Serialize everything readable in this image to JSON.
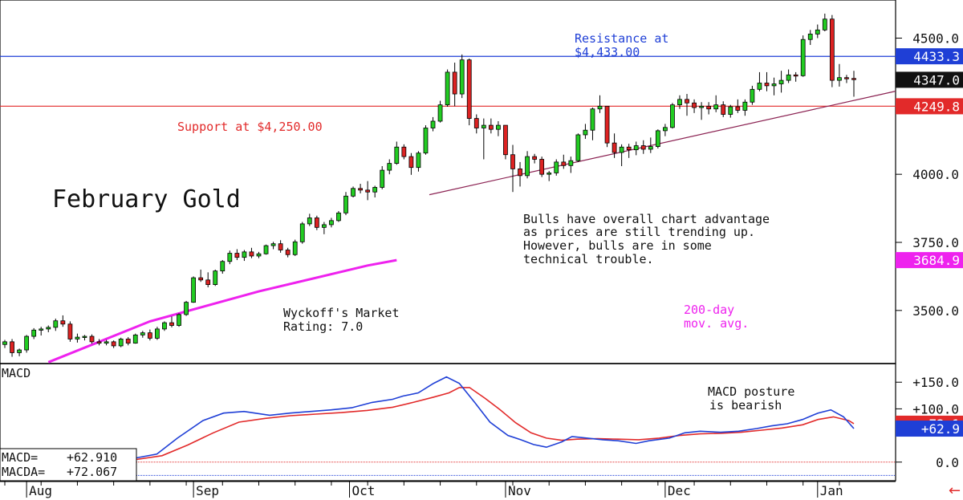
{
  "chart_data": [
    {
      "type": "candlestick",
      "title": "February Gold",
      "x_months": [
        "Aug",
        "Sep",
        "Oct",
        "Nov",
        "Dec",
        "Jan"
      ],
      "y_ticks": [
        "4500.0",
        "4000.0",
        "3750.0",
        "3500.0"
      ],
      "y_tick_values": [
        4500,
        4000,
        3750,
        3500
      ],
      "ylim": [
        3305,
        4640
      ],
      "price_tags": [
        {
          "label": "4433.3",
          "value": 4433.3,
          "bg": "#1f3fd6",
          "fg": "#ffffff"
        },
        {
          "label": "4347.0",
          "value": 4347.0,
          "bg": "#111111",
          "fg": "#ffffff"
        },
        {
          "label": "4249.8",
          "value": 4249.8,
          "bg": "#e22a2a",
          "fg": "#ffffff"
        },
        {
          "label": "3684.9",
          "value": 3684.9,
          "bg": "#ee22ee",
          "fg": "#ffffff"
        }
      ],
      "lines": {
        "resistance": {
          "value": 4433,
          "color": "#1f3fd6"
        },
        "support": {
          "value": 4250,
          "color": "#e22a2a"
        },
        "trendline": {
          "from": [
            28,
            3925
          ],
          "to": [
            55.5,
            4265
          ],
          "color": "#8b2252"
        }
      },
      "ma_200": {
        "color": "#ee22ee",
        "points": [
          [
            6,
            3310
          ],
          [
            20,
            3460
          ],
          [
            35,
            3570
          ],
          [
            50,
            3665
          ],
          [
            54,
            3685
          ]
        ]
      },
      "colors": {
        "up": "#22cc22",
        "down": "#dd2222",
        "outline": "#000000"
      },
      "candles": [
        [
          3375,
          3392,
          3362,
          3385
        ],
        [
          3385,
          3395,
          3330,
          3345
        ],
        [
          3345,
          3360,
          3332,
          3355
        ],
        [
          3355,
          3410,
          3345,
          3405
        ],
        [
          3405,
          3435,
          3395,
          3428
        ],
        [
          3428,
          3440,
          3408,
          3432
        ],
        [
          3432,
          3445,
          3420,
          3438
        ],
        [
          3438,
          3470,
          3425,
          3462
        ],
        [
          3462,
          3482,
          3440,
          3450
        ],
        [
          3450,
          3460,
          3385,
          3395
        ],
        [
          3395,
          3415,
          3382,
          3402
        ],
        [
          3402,
          3410,
          3390,
          3405
        ],
        [
          3405,
          3412,
          3378,
          3385
        ],
        [
          3385,
          3395,
          3372,
          3380
        ],
        [
          3380,
          3392,
          3372,
          3385
        ],
        [
          3385,
          3390,
          3362,
          3370
        ],
        [
          3370,
          3400,
          3365,
          3395
        ],
        [
          3395,
          3402,
          3372,
          3380
        ],
        [
          3380,
          3415,
          3378,
          3410
        ],
        [
          3410,
          3425,
          3400,
          3418
        ],
        [
          3418,
          3430,
          3390,
          3398
        ],
        [
          3398,
          3440,
          3392,
          3432
        ],
        [
          3432,
          3460,
          3425,
          3455
        ],
        [
          3455,
          3478,
          3438,
          3445
        ],
        [
          3445,
          3490,
          3440,
          3485
        ],
        [
          3485,
          3535,
          3480,
          3530
        ],
        [
          3530,
          3625,
          3528,
          3620
        ],
        [
          3620,
          3650,
          3605,
          3612
        ],
        [
          3612,
          3640,
          3585,
          3595
        ],
        [
          3595,
          3650,
          3590,
          3645
        ],
        [
          3645,
          3685,
          3635,
          3680
        ],
        [
          3680,
          3720,
          3670,
          3710
        ],
        [
          3710,
          3725,
          3685,
          3695
        ],
        [
          3695,
          3722,
          3682,
          3715
        ],
        [
          3715,
          3730,
          3692,
          3700
        ],
        [
          3700,
          3715,
          3692,
          3708
        ],
        [
          3708,
          3742,
          3705,
          3738
        ],
        [
          3738,
          3752,
          3725,
          3745
        ],
        [
          3745,
          3758,
          3712,
          3722
        ],
        [
          3722,
          3730,
          3695,
          3705
        ],
        [
          3705,
          3760,
          3700,
          3752
        ],
        [
          3752,
          3825,
          3745,
          3818
        ],
        [
          3818,
          3855,
          3810,
          3840
        ],
        [
          3840,
          3848,
          3795,
          3805
        ],
        [
          3805,
          3825,
          3780,
          3815
        ],
        [
          3815,
          3840,
          3805,
          3830
        ],
        [
          3830,
          3865,
          3825,
          3858
        ],
        [
          3858,
          3935,
          3850,
          3920
        ],
        [
          3920,
          3955,
          3915,
          3948
        ],
        [
          3948,
          3965,
          3930,
          3942
        ],
        [
          3942,
          3975,
          3905,
          3935
        ],
        [
          3935,
          3958,
          3915,
          3952
        ],
        [
          3952,
          4030,
          3945,
          4015
        ],
        [
          4015,
          4055,
          4000,
          4040
        ],
        [
          4040,
          4120,
          4035,
          4100
        ],
        [
          4100,
          4110,
          4055,
          4065
        ],
        [
          4065,
          4078,
          3998,
          4025
        ],
        [
          4025,
          4085,
          4010,
          4078
        ],
        [
          4078,
          4180,
          4072,
          4170
        ],
        [
          4170,
          4210,
          4158,
          4195
        ],
        [
          4195,
          4270,
          4190,
          4255
        ],
        [
          4255,
          4385,
          4248,
          4375
        ],
        [
          4375,
          4410,
          4250,
          4295
        ],
        [
          4295,
          4440,
          4280,
          4420
        ],
        [
          4420,
          4425,
          4180,
          4205
        ],
        [
          4205,
          4220,
          4150,
          4170
        ],
        [
          4170,
          4205,
          4055,
          4180
        ],
        [
          4180,
          4205,
          4150,
          4165
        ],
        [
          4165,
          4195,
          4140,
          4180
        ],
        [
          4180,
          4180,
          4055,
          4072
        ],
        [
          4072,
          4108,
          3935,
          4020
        ],
        [
          4020,
          4045,
          3955,
          3995
        ],
        [
          3995,
          4085,
          3985,
          4065
        ],
        [
          4065,
          4075,
          4040,
          4055
        ],
        [
          4055,
          4065,
          3990,
          4000
        ],
        [
          4000,
          4012,
          3975,
          4005
        ],
        [
          4005,
          4055,
          3995,
          4045
        ],
        [
          4045,
          4072,
          4020,
          4032
        ],
        [
          4032,
          4065,
          4005,
          4050
        ],
        [
          4050,
          4150,
          4045,
          4145
        ],
        [
          4145,
          4185,
          4130,
          4162
        ],
        [
          4162,
          4245,
          4125,
          4240
        ],
        [
          4240,
          4290,
          4225,
          4250
        ],
        [
          4250,
          4250,
          4100,
          4115
        ],
        [
          4115,
          4150,
          4060,
          4080
        ],
        [
          4080,
          4110,
          4030,
          4100
        ],
        [
          4100,
          4112,
          4060,
          4090
        ],
        [
          4090,
          4120,
          4070,
          4105
        ],
        [
          4105,
          4125,
          4075,
          4092
        ],
        [
          4092,
          4135,
          4078,
          4102
        ],
        [
          4102,
          4165,
          4095,
          4160
        ],
        [
          4160,
          4185,
          4140,
          4172
        ],
        [
          4172,
          4262,
          4168,
          4255
        ],
        [
          4255,
          4290,
          4240,
          4275
        ],
        [
          4275,
          4295,
          4215,
          4262
        ],
        [
          4262,
          4275,
          4225,
          4245
        ],
        [
          4245,
          4265,
          4200,
          4250
        ],
        [
          4250,
          4265,
          4220,
          4240
        ],
        [
          4240,
          4290,
          4228,
          4255
        ],
        [
          4255,
          4268,
          4210,
          4220
        ],
        [
          4220,
          4255,
          4208,
          4248
        ],
        [
          4248,
          4275,
          4225,
          4235
        ],
        [
          4235,
          4275,
          4215,
          4265
        ],
        [
          4265,
          4325,
          4255,
          4312
        ],
        [
          4312,
          4375,
          4305,
          4335
        ],
        [
          4335,
          4375,
          4305,
          4325
        ],
        [
          4325,
          4355,
          4290,
          4332
        ],
        [
          4332,
          4380,
          4300,
          4345
        ],
        [
          4345,
          4385,
          4335,
          4365
        ],
        [
          4365,
          4375,
          4340,
          4362
        ],
        [
          4362,
          4510,
          4358,
          4495
        ],
        [
          4495,
          4530,
          4475,
          4515
        ],
        [
          4515,
          4550,
          4500,
          4530
        ],
        [
          4530,
          4590,
          4525,
          4570
        ],
        [
          4570,
          4585,
          4320,
          4345
        ],
        [
          4345,
          4405,
          4322,
          4355
        ],
        [
          4355,
          4365,
          4335,
          4352
        ],
        [
          4352,
          4380,
          4285,
          4350
        ]
      ]
    },
    {
      "type": "line",
      "title": "MACD",
      "y_ticks": [
        "+150.0",
        "+100.0",
        "0.0"
      ],
      "y_tick_values": [
        150,
        100,
        0
      ],
      "ylim": [
        -35,
        185
      ],
      "price_tags": [
        {
          "label": "+72.1",
          "value": 72.1,
          "bg": "#e22a2a",
          "fg": "#ffffff"
        },
        {
          "label": "+62.9",
          "value": 62.9,
          "bg": "#1f3fd6",
          "fg": "#ffffff"
        }
      ],
      "zero_line": {
        "value": 0,
        "color": "#e22a2a"
      },
      "lower_line": {
        "value": -25,
        "color": "#1f3fd6"
      },
      "series": [
        {
          "name": "MACD",
          "color": "#1f3fd6",
          "points": [
            [
              0,
              8
            ],
            [
              8,
              15
            ],
            [
              16,
              45
            ],
            [
              26,
              78
            ],
            [
              34,
              92
            ],
            [
              42,
              95
            ],
            [
              52,
              88
            ],
            [
              60,
              92
            ],
            [
              68,
              95
            ],
            [
              76,
              98
            ],
            [
              84,
              102
            ],
            [
              92,
              112
            ],
            [
              100,
              118
            ],
            [
              104,
              124
            ],
            [
              110,
              130
            ],
            [
              116,
              148
            ],
            [
              121,
              160
            ],
            [
              126,
              148
            ],
            [
              132,
              112
            ],
            [
              138,
              75
            ],
            [
              145,
              50
            ],
            [
              150,
              42
            ],
            [
              155,
              33
            ],
            [
              160,
              28
            ],
            [
              166,
              38
            ],
            [
              170,
              48
            ],
            [
              176,
              45
            ],
            [
              182,
              42
            ],
            [
              188,
              40
            ],
            [
              195,
              35
            ],
            [
              200,
              40
            ],
            [
              208,
              45
            ],
            [
              214,
              55
            ],
            [
              220,
              58
            ],
            [
              228,
              56
            ],
            [
              235,
              58
            ],
            [
              242,
              63
            ],
            [
              248,
              68
            ],
            [
              254,
              72
            ],
            [
              260,
              80
            ],
            [
              266,
              92
            ],
            [
              271,
              98
            ],
            [
              276,
              85
            ],
            [
              280,
              62.9
            ]
          ]
        },
        {
          "name": "MACDA",
          "color": "#e22a2a",
          "points": [
            [
              0,
              5
            ],
            [
              10,
              12
            ],
            [
              20,
              32
            ],
            [
              30,
              55
            ],
            [
              40,
              75
            ],
            [
              50,
              82
            ],
            [
              60,
              87
            ],
            [
              70,
              90
            ],
            [
              80,
              93
            ],
            [
              90,
              97
            ],
            [
              100,
              103
            ],
            [
              108,
              112
            ],
            [
              116,
              122
            ],
            [
              122,
              130
            ],
            [
              126,
              140
            ],
            [
              130,
              140
            ],
            [
              136,
              120
            ],
            [
              142,
              98
            ],
            [
              148,
              74
            ],
            [
              154,
              55
            ],
            [
              160,
              45
            ],
            [
              166,
              41
            ],
            [
              172,
              43
            ],
            [
              180,
              44
            ],
            [
              188,
              43
            ],
            [
              196,
              42
            ],
            [
              204,
              45
            ],
            [
              212,
              50
            ],
            [
              220,
              53
            ],
            [
              228,
              54
            ],
            [
              236,
              56
            ],
            [
              244,
              60
            ],
            [
              252,
              64
            ],
            [
              260,
              70
            ],
            [
              266,
              80
            ],
            [
              272,
              85
            ],
            [
              278,
              78
            ],
            [
              280,
              72.1
            ]
          ]
        }
      ],
      "readout": {
        "macd_label": "MACD=",
        "macd_value": "+62.910",
        "macda_label": "MACDA=",
        "macda_value": "+72.067"
      }
    }
  ],
  "annotations": {
    "chart_title": "February Gold",
    "resistance_line1": "Resistance at",
    "resistance_line2": "$4,433.00",
    "support": "Support at $4,250.00",
    "bulls_note": [
      "Bulls have overall chart advantage",
      "as prices are still trending up.",
      "However, bulls are in some",
      "technical trouble."
    ],
    "wyckoff_line1": "Wyckoff's Market",
    "wyckoff_line2": "Rating: 7.0",
    "ma_line1": "200-day",
    "ma_line2": "mov. avg.",
    "macd_note_line1": "MACD posture",
    "macd_note_line2": "is bearish"
  },
  "nav": {
    "arrow_glyph": "←",
    "arrow_color": "#e22a2a"
  }
}
